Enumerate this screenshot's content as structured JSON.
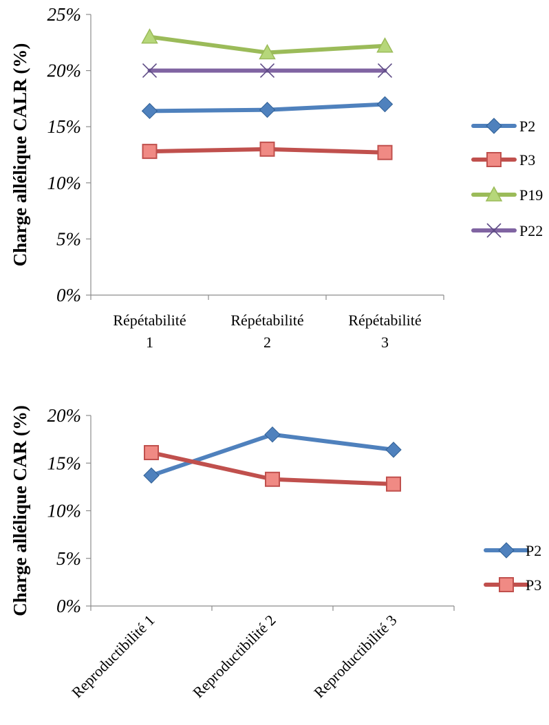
{
  "chart_data": [
    {
      "type": "line",
      "ylabel": "Charge allélique CALR (%)",
      "xlabel": "",
      "ylim": [
        0,
        25
      ],
      "yticks": [
        "0%",
        "5%",
        "10%",
        "15%",
        "20%",
        "25%"
      ],
      "categories": [
        [
          "Répétabilité",
          "1"
        ],
        [
          "Répétabilité",
          "2"
        ],
        [
          "Répétabilité",
          "3"
        ]
      ],
      "grid": false,
      "legend_position": "right",
      "series": [
        {
          "name": "P2",
          "values": [
            16.4,
            16.5,
            17.0
          ],
          "color": "#4f81bd",
          "marker": "diamond"
        },
        {
          "name": "P3",
          "values": [
            12.8,
            13.0,
            12.7
          ],
          "color": "#c0504d",
          "marker": "square"
        },
        {
          "name": "P19",
          "values": [
            23.0,
            21.6,
            22.2
          ],
          "color": "#9bbb59",
          "marker": "triangle"
        },
        {
          "name": "P22",
          "values": [
            20.0,
            20.0,
            20.0
          ],
          "color": "#8064a2",
          "marker": "x"
        }
      ]
    },
    {
      "type": "line",
      "ylabel": "Charge allélique CAR (%)",
      "xlabel": "",
      "ylim": [
        0,
        20
      ],
      "yticks": [
        "0%",
        "5%",
        "10%",
        "15%",
        "20%"
      ],
      "categories": [
        [
          "Reproductibilité 1"
        ],
        [
          "Reproductibilité 2"
        ],
        [
          "Reproductibilité 3"
        ]
      ],
      "grid": false,
      "legend_position": "right",
      "series": [
        {
          "name": "P2",
          "values": [
            13.7,
            18.0,
            16.4
          ],
          "color": "#4f81bd",
          "marker": "diamond"
        },
        {
          "name": "P3",
          "values": [
            16.1,
            13.3,
            12.8
          ],
          "color": "#c0504d",
          "marker": "square"
        }
      ]
    }
  ]
}
